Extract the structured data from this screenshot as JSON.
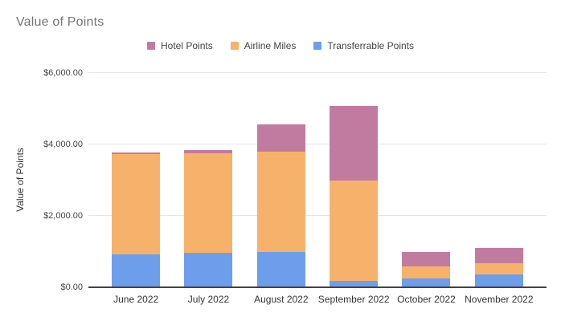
{
  "title": "Value of Points",
  "legend": {
    "items": [
      {
        "label": "Hotel Points",
        "color": "#c27ba0"
      },
      {
        "label": "Airline Miles",
        "color": "#f6b26b"
      },
      {
        "label": "Transferrable Points",
        "color": "#6d9eeb"
      }
    ]
  },
  "y_axis": {
    "title": "Value of Points",
    "ticks": [
      {
        "value": 6000,
        "label": "$6,000.00"
      },
      {
        "value": 4000,
        "label": "$4,000.00"
      },
      {
        "value": 2000,
        "label": "$2,000.00"
      },
      {
        "value": 0,
        "label": "$0.00"
      }
    ]
  },
  "chart_data": {
    "type": "bar",
    "stacked": true,
    "title": "Value of Points",
    "xlabel": "",
    "ylabel": "Value of Points",
    "categories": [
      "June 2022",
      "July 2022",
      "August 2022",
      "September 2022",
      "October 2022",
      "November 2022"
    ],
    "series": [
      {
        "name": "Transferrable Points",
        "color": "#6d9eeb",
        "values": [
          925,
          960,
          1000,
          180,
          245,
          360
        ]
      },
      {
        "name": "Airline Miles",
        "color": "#f6b26b",
        "values": [
          2815,
          2790,
          2790,
          2820,
          335,
          315
        ]
      },
      {
        "name": "Hotel Points",
        "color": "#c27ba0",
        "values": [
          40,
          85,
          770,
          2075,
          410,
          435
        ]
      }
    ],
    "ylim": [
      0,
      6000
    ],
    "y_tick_step": 2000,
    "grid": true,
    "legend_position": "top"
  }
}
